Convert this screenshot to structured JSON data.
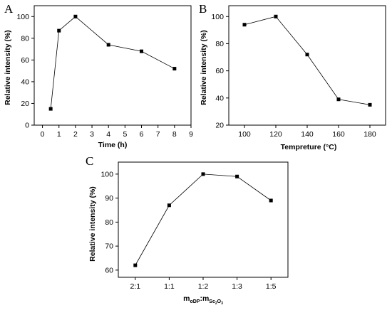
{
  "chart_data": [
    {
      "type": "line",
      "panel_label": "A",
      "x": [
        0.5,
        1,
        2,
        4,
        6,
        8
      ],
      "series": [
        {
          "values": [
            15,
            87,
            100,
            74,
            68,
            52
          ]
        }
      ],
      "xlabel": "Time (h)",
      "ylabel": "Relative intensity (%)",
      "xlim": [
        -0.5,
        9
      ],
      "ylim": [
        0,
        110
      ],
      "xticks": [
        "0",
        "1",
        "2",
        "3",
        "4",
        "5",
        "6",
        "7",
        "8",
        "9"
      ],
      "yticks": [
        "0",
        "20",
        "40",
        "60",
        "80",
        "100"
      ],
      "grid": false,
      "marker": "square"
    },
    {
      "type": "line",
      "panel_label": "B",
      "x": [
        100,
        120,
        140,
        160,
        180
      ],
      "series": [
        {
          "values": [
            94,
            100,
            72,
            39,
            35
          ]
        }
      ],
      "xlabel": "Tempreture (°C)",
      "ylabel": "Relative intensity (%)",
      "xlim": [
        90,
        190
      ],
      "ylim": [
        20,
        108
      ],
      "xticks": [
        "100",
        "120",
        "140",
        "160",
        "180"
      ],
      "yticks": [
        "20",
        "40",
        "60",
        "80",
        "100"
      ],
      "grid": false,
      "marker": "square"
    },
    {
      "type": "line",
      "panel_label": "C",
      "categories": [
        "2:1",
        "1:1",
        "1:2",
        "1:3",
        "1:5"
      ],
      "series": [
        {
          "values": [
            62,
            87,
            100,
            99,
            89
          ]
        }
      ],
      "xlabel": {
        "m1": "m",
        "s1": "oDP",
        "colon": ":",
        "m2": "m",
        "s2a": "Sc",
        "s2b": "2",
        "s2c": "O",
        "s2d": "3"
      },
      "ylabel": "Relative intensity (%)",
      "ylim": [
        57,
        105
      ],
      "yticks": [
        "60",
        "70",
        "80",
        "90",
        "100"
      ],
      "grid": false,
      "marker": "square"
    }
  ]
}
